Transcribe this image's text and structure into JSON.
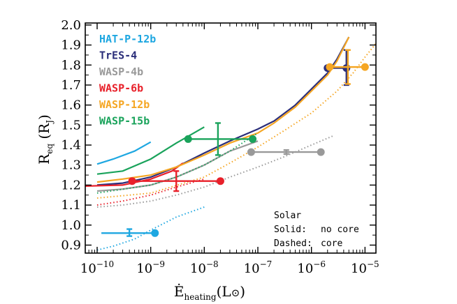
{
  "chart_data": {
    "type": "line",
    "xscale": "log",
    "xlim": [
      6e-11,
      1.6e-05
    ],
    "ylim": [
      0.86,
      2.01
    ],
    "xticks": [
      {
        "value": 1e-10,
        "base": "10",
        "exp": "−10"
      },
      {
        "value": 1e-09,
        "base": "10",
        "exp": "−9"
      },
      {
        "value": 1e-08,
        "base": "10",
        "exp": "−8"
      },
      {
        "value": 1e-07,
        "base": "10",
        "exp": "−7"
      },
      {
        "value": 1e-06,
        "base": "10",
        "exp": "−6"
      },
      {
        "value": 1e-05,
        "base": "10",
        "exp": "−5"
      }
    ],
    "yticks": [
      0.9,
      1.0,
      1.1,
      1.2,
      1.3,
      1.4,
      1.5,
      1.6,
      1.7,
      1.8,
      1.9,
      2.0
    ],
    "ytick_labels": [
      "0.9",
      "1.0",
      "1.1",
      "1.2",
      "1.3",
      "1.4",
      "1.5",
      "1.6",
      "1.7",
      "1.8",
      "1.9",
      "2.0"
    ],
    "xlabel": {
      "main": "Ė",
      "sub": "heating",
      "unit_open": "(L",
      "unit_sym": "⊙",
      "unit_close": ")"
    },
    "ylabel": {
      "main": "R",
      "sub": "eq",
      "unit_open": " (R",
      "unit_sub": "J",
      "unit_close": ")"
    },
    "legend": {
      "placement": "top-left",
      "entries": [
        {
          "label": "HAT-P-12b",
          "color": "#1ea7e1"
        },
        {
          "label": "TrES-4",
          "color": "#2b2e7a"
        },
        {
          "label": "WASP-4b",
          "color": "#999999"
        },
        {
          "label": "WASP-6b",
          "color": "#e8202a"
        },
        {
          "label": "WASP-12b",
          "color": "#f5a623"
        },
        {
          "label": "WASP-15b",
          "color": "#1aa35b"
        }
      ]
    },
    "annotation": {
      "placement": "bottom-right",
      "title": "Solar",
      "rows": [
        {
          "key": "Solid:",
          "value": "no core"
        },
        {
          "key": "Dashed:",
          "value": "core"
        }
      ]
    },
    "series": [
      {
        "name": "HAT-P-12b",
        "color": "#1ea7e1",
        "solid": [
          [
            1e-10,
            1.305
          ],
          [
            2e-10,
            1.33
          ],
          [
            5e-10,
            1.37
          ],
          [
            1e-09,
            1.415
          ]
        ],
        "dashed": [
          [
            1e-10,
            0.875
          ],
          [
            2e-10,
            0.895
          ],
          [
            5e-10,
            0.93
          ],
          [
            1e-09,
            0.975
          ],
          [
            3e-09,
            1.04
          ],
          [
            1e-08,
            1.09
          ]
        ],
        "measurement": {
          "x": 1.2e-09,
          "xmin": 1.2e-10,
          "xmax": 1.2e-09,
          "y": 0.96,
          "ymin": 0.945,
          "ymax": 0.98,
          "bar_x": 4e-10,
          "ycap_x": 4e-10
        }
      },
      {
        "name": "TrES-4",
        "color": "#2b2e7a",
        "solid": [
          [
            1e-10,
            1.2
          ],
          [
            3e-10,
            1.21
          ],
          [
            1e-09,
            1.24
          ],
          [
            3e-09,
            1.29
          ],
          [
            1e-08,
            1.36
          ],
          [
            3e-08,
            1.42
          ],
          [
            1e-07,
            1.48
          ],
          [
            2e-07,
            1.52
          ],
          [
            5e-07,
            1.6
          ],
          [
            1e-06,
            1.68
          ],
          [
            2e-06,
            1.76
          ],
          [
            3e-06,
            1.83
          ],
          [
            5e-06,
            1.94
          ]
        ],
        "dashed": [],
        "measurement": {
          "x": 2e-06,
          "xmin": 2e-06,
          "xmax": 4.5e-06,
          "y": 1.785,
          "ymin": 1.7,
          "ymax": 1.875,
          "bar_x": 4.5e-06,
          "ycap_x": 4.5e-06
        }
      },
      {
        "name": "WASP-4b",
        "color": "#999999",
        "solid": [
          [
            1e-10,
            1.17
          ],
          [
            3e-10,
            1.18
          ],
          [
            1e-09,
            1.2
          ],
          [
            3e-09,
            1.24
          ],
          [
            1e-08,
            1.3
          ],
          [
            3e-08,
            1.37
          ],
          [
            1e-07,
            1.42
          ]
        ],
        "dashed": [
          [
            1e-10,
            1.09
          ],
          [
            3e-10,
            1.1
          ],
          [
            1e-09,
            1.12
          ],
          [
            3e-09,
            1.15
          ],
          [
            1e-08,
            1.19
          ],
          [
            3e-08,
            1.24
          ],
          [
            1e-07,
            1.29
          ],
          [
            3e-07,
            1.34
          ],
          [
            1e-06,
            1.4
          ],
          [
            2.5e-06,
            1.445
          ]
        ],
        "measurement": {
          "x": 7.5e-08,
          "xmin": 7.5e-08,
          "xmax": 1.5e-06,
          "y": 1.365,
          "ymin": 1.355,
          "ymax": 1.375,
          "bar_x": 3.4e-07,
          "ycap_x": 3.4e-07
        }
      },
      {
        "name": "WASP-6b",
        "color": "#e8202a",
        "solid": [
          [
            6e-11,
            1.195
          ],
          [
            3e-10,
            1.2
          ],
          [
            1e-09,
            1.23
          ],
          [
            2.5e-09,
            1.27
          ],
          [
            4e-09,
            1.31
          ]
        ],
        "dashed": [
          [
            1e-10,
            1.1
          ],
          [
            3e-10,
            1.12
          ],
          [
            1e-09,
            1.15
          ],
          [
            3e-09,
            1.19
          ],
          [
            1e-08,
            1.23
          ]
        ],
        "measurement": {
          "x": 4.5e-10,
          "xmin": 4.5e-10,
          "xmax": 2e-08,
          "y": 1.22,
          "ymin": 1.17,
          "ymax": 1.27,
          "bar_x": 3e-09,
          "ycap_x": 3e-09
        }
      },
      {
        "name": "WASP-12b",
        "color": "#f5a623",
        "solid": [
          [
            1e-10,
            1.215
          ],
          [
            3e-10,
            1.23
          ],
          [
            1e-09,
            1.25
          ],
          [
            3e-09,
            1.29
          ],
          [
            1e-08,
            1.35
          ],
          [
            3e-08,
            1.41
          ],
          [
            1e-07,
            1.46
          ],
          [
            2e-07,
            1.51
          ],
          [
            5e-07,
            1.59
          ],
          [
            1e-06,
            1.67
          ],
          [
            2e-06,
            1.75
          ],
          [
            3e-06,
            1.82
          ],
          [
            5e-06,
            1.94
          ]
        ],
        "dashed": [
          [
            1e-10,
            1.135
          ],
          [
            1e-09,
            1.16
          ],
          [
            1e-08,
            1.24
          ],
          [
            3e-08,
            1.31
          ],
          [
            1e-07,
            1.39
          ],
          [
            3e-07,
            1.47
          ],
          [
            1e-06,
            1.56
          ],
          [
            3e-06,
            1.67
          ],
          [
            6e-06,
            1.76
          ],
          [
            1e-05,
            1.84
          ],
          [
            2e-05,
            1.94
          ]
        ],
        "measurement": {
          "x": 2.2e-06,
          "xmin": 2.2e-06,
          "xmax": 1e-05,
          "y": 1.79,
          "ymin": 1.705,
          "ymax": 1.875,
          "bar_x": 4.8e-06,
          "ycap_x": 4.8e-06
        }
      },
      {
        "name": "WASP-15b",
        "color": "#1aa35b",
        "solid": [
          [
            1e-10,
            1.255
          ],
          [
            3e-10,
            1.27
          ],
          [
            1e-09,
            1.33
          ],
          [
            3e-09,
            1.41
          ],
          [
            1e-08,
            1.49
          ]
        ],
        "dashed": [
          [
            1e-10,
            1.16
          ],
          [
            1e-09,
            1.2
          ],
          [
            3e-09,
            1.24
          ],
          [
            1e-08,
            1.3
          ],
          [
            3e-08,
            1.37
          ],
          [
            1e-07,
            1.46
          ]
        ],
        "measurement": {
          "x": 5e-09,
          "xmin": 5e-09,
          "xmax": 8e-08,
          "y": 1.43,
          "ymin": 1.35,
          "ymax": 1.51,
          "bar_x": 1.8e-08,
          "ycap_x": 1.8e-08
        }
      }
    ]
  }
}
